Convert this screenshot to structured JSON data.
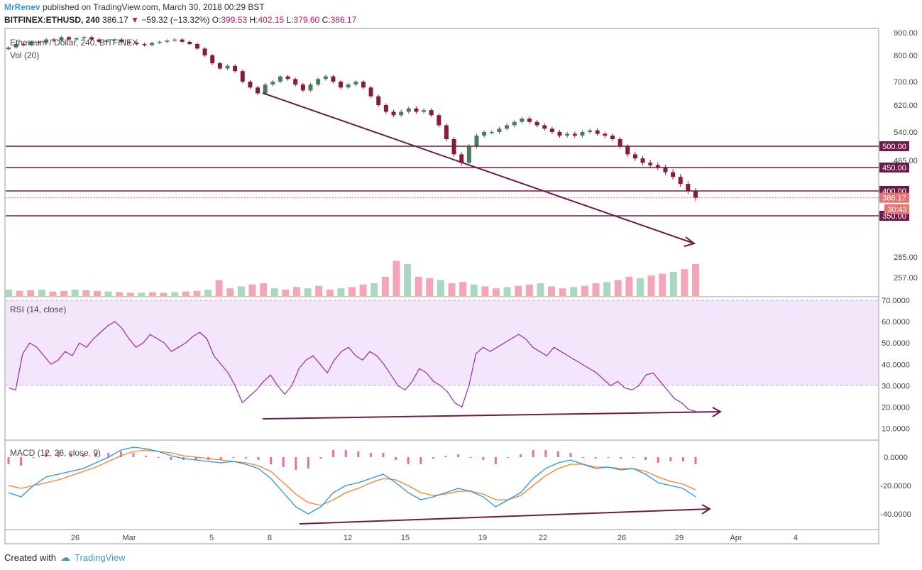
{
  "header": {
    "author": "MrRenev",
    "published": "published on TradingView.com, March 30, 2018 00:29 BST",
    "symbol": "BITFINEX:ETHUSD, 240",
    "last": "386.17",
    "change": "−59.32 (−13.32%)",
    "o_label": "O:",
    "o_value": "399.53",
    "h_label": "H:",
    "h_value": "402.15",
    "l_label": "L:",
    "l_value": "379.60",
    "c_label": "C:",
    "c_value": "386.17"
  },
  "price_panel": {
    "title": "Ethereum / Dollar, 240, BITFINEX",
    "indicator": "Vol (20)"
  },
  "footer": {
    "created_with": "Created with",
    "brand": "TradingView"
  },
  "colors": {
    "up": "#4a7c59",
    "down": "#8b1a3a",
    "line": "#6d1b4a",
    "rsi": "#9c27b0",
    "macd": "#2196f3",
    "signal": "#ff7f27"
  },
  "chart_data": [
    {
      "type": "candlestick",
      "name": "price",
      "yaxis_ticks": [
        "900.00",
        "800.00",
        "700.00",
        "620.00",
        "540.00",
        "465.00",
        "285.00",
        "257.00"
      ],
      "horizontal_levels": [
        "500.00",
        "450.00",
        "400.00",
        "350.00"
      ],
      "last_price_label": "386.17",
      "countdown_label": "30:43",
      "x_tick_labels": [
        "26",
        "Mar",
        "5",
        "8",
        "12",
        "15",
        "19",
        "22",
        "26",
        "29",
        "Apr",
        "4"
      ],
      "closes": [
        835,
        850,
        845,
        860,
        855,
        870,
        865,
        880,
        870,
        875,
        880,
        870,
        860,
        865,
        870,
        860,
        855,
        850,
        845,
        855,
        860,
        865,
        870,
        860,
        850,
        830,
        800,
        770,
        750,
        760,
        740,
        700,
        680,
        660,
        690,
        700,
        720,
        710,
        690,
        670,
        690,
        710,
        720,
        700,
        680,
        690,
        700,
        680,
        650,
        620,
        600,
        590,
        600,
        610,
        600,
        605,
        590,
        560,
        520,
        480,
        460,
        500,
        530,
        540,
        540,
        550,
        560,
        570,
        580,
        570,
        560,
        550,
        540,
        530,
        535,
        530,
        540,
        545,
        535,
        530,
        520,
        500,
        480,
        470,
        460,
        455,
        450,
        440,
        430,
        415,
        400,
        386
      ],
      "volume_relative": [
        0.1,
        0.08,
        0.09,
        0.1,
        0.07,
        0.08,
        0.1,
        0.09,
        0.08,
        0.07,
        0.06,
        0.05,
        0.05,
        0.06,
        0.05,
        0.06,
        0.07,
        0.08,
        0.1,
        0.25,
        0.12,
        0.15,
        0.18,
        0.2,
        0.12,
        0.1,
        0.14,
        0.12,
        0.16,
        0.1,
        0.12,
        0.14,
        0.18,
        0.2,
        0.3,
        0.55,
        0.5,
        0.3,
        0.28,
        0.25,
        0.2,
        0.22,
        0.18,
        0.15,
        0.12,
        0.14,
        0.16,
        0.18,
        0.2,
        0.15,
        0.12,
        0.14,
        0.16,
        0.2,
        0.22,
        0.25,
        0.3,
        0.28,
        0.32,
        0.35,
        0.38,
        0.42,
        0.5
      ],
      "annotation": "arrow from first swing high down-right"
    },
    {
      "type": "line",
      "name": "RSI",
      "title": "RSI (14, close)",
      "yaxis_ticks": [
        "70.0000",
        "60.0000",
        "50.0000",
        "40.0000",
        "30.0000",
        "20.0000",
        "10.0000"
      ],
      "ylim": [
        5,
        72
      ],
      "band": [
        30,
        70
      ],
      "values": [
        29,
        28,
        45,
        50,
        48,
        44,
        40,
        42,
        46,
        44,
        50,
        48,
        52,
        55,
        58,
        60,
        57,
        52,
        48,
        50,
        54,
        52,
        50,
        46,
        48,
        50,
        53,
        55,
        52,
        44,
        40,
        36,
        30,
        22,
        25,
        28,
        32,
        35,
        30,
        26,
        30,
        38,
        42,
        44,
        40,
        36,
        42,
        46,
        48,
        44,
        42,
        46,
        44,
        40,
        35,
        30,
        28,
        32,
        38,
        36,
        32,
        30,
        27,
        22,
        20,
        30,
        45,
        48,
        46,
        48,
        50,
        52,
        54,
        52,
        48,
        46,
        44,
        48,
        46,
        44,
        42,
        40,
        38,
        36,
        33,
        30,
        32,
        29,
        28,
        30,
        35,
        36,
        32,
        28,
        24,
        22,
        19,
        18
      ],
      "annotation": "rising trend line under lows"
    },
    {
      "type": "line",
      "name": "MACD",
      "title": "MACD (12, 26, close, 9)",
      "yaxis_ticks": [
        "0.0000",
        "-20.0000",
        "-40.0000"
      ],
      "ylim": [
        -50,
        10
      ],
      "series": [
        {
          "name": "MACD",
          "values": [
            -25,
            -28,
            -20,
            -14,
            -12,
            -10,
            -8,
            -4,
            0,
            5,
            7,
            6,
            4,
            1,
            -1,
            -2,
            -3,
            -4,
            -3,
            -5,
            -8,
            -15,
            -25,
            -35,
            -40,
            -35,
            -25,
            -20,
            -18,
            -15,
            -12,
            -18,
            -25,
            -30,
            -28,
            -25,
            -22,
            -24,
            -28,
            -35,
            -30,
            -25,
            -15,
            -8,
            -4,
            -2,
            -5,
            -8,
            -7,
            -9,
            -8,
            -12,
            -18,
            -20,
            -22,
            -28
          ]
        },
        {
          "name": "Signal",
          "values": [
            -20,
            -22,
            -20,
            -18,
            -16,
            -13,
            -10,
            -7,
            -3,
            1,
            4,
            5,
            4,
            3,
            1,
            0,
            -1,
            -2,
            -3,
            -4,
            -6,
            -10,
            -18,
            -26,
            -32,
            -34,
            -30,
            -25,
            -22,
            -18,
            -15,
            -16,
            -20,
            -25,
            -27,
            -26,
            -24,
            -24,
            -26,
            -30,
            -30,
            -27,
            -20,
            -13,
            -8,
            -5,
            -5,
            -7,
            -7,
            -8,
            -8,
            -10,
            -14,
            -17,
            -19,
            -23
          ]
        }
      ],
      "annotation": "rising trend line under MACD lows"
    }
  ]
}
